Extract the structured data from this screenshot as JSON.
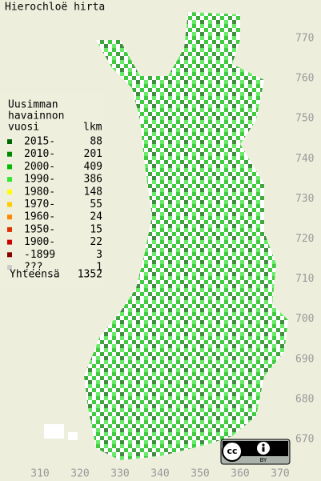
{
  "title": "Hierochloë hirta",
  "legend": {
    "heading": [
      "Uusimman",
      "havainnon",
      "vuosi"
    ],
    "count_heading": "lkm",
    "entries": [
      {
        "label": "2015-",
        "count": 88,
        "color": "#006600"
      },
      {
        "label": "2010-",
        "count": 201,
        "color": "#008a00"
      },
      {
        "label": "2000-",
        "count": 409,
        "color": "#00bb00"
      },
      {
        "label": "1990-",
        "count": 386,
        "color": "#33e633"
      },
      {
        "label": "1980-",
        "count": 148,
        "color": "#ffff00"
      },
      {
        "label": "1970-",
        "count": 55,
        "color": "#ffcc00"
      },
      {
        "label": "1960-",
        "count": 24,
        "color": "#ff8800"
      },
      {
        "label": "1950-",
        "count": 15,
        "color": "#e03000"
      },
      {
        "label": "1900-",
        "count": 22,
        "color": "#cc0000"
      },
      {
        "label": "-1899",
        "count": 3,
        "color": "#880000"
      },
      {
        "label": "???",
        "count": 1,
        "color": "#cccccc"
      }
    ],
    "total_label": "Yhteensä",
    "total": 1352
  },
  "map": {
    "xticks": [
      310,
      320,
      330,
      340,
      350,
      360,
      370
    ],
    "yticks": [
      670,
      680,
      690,
      700,
      710,
      720,
      730,
      740,
      750,
      760,
      770
    ]
  },
  "license": {
    "badge": "cc",
    "by": "BY"
  }
}
